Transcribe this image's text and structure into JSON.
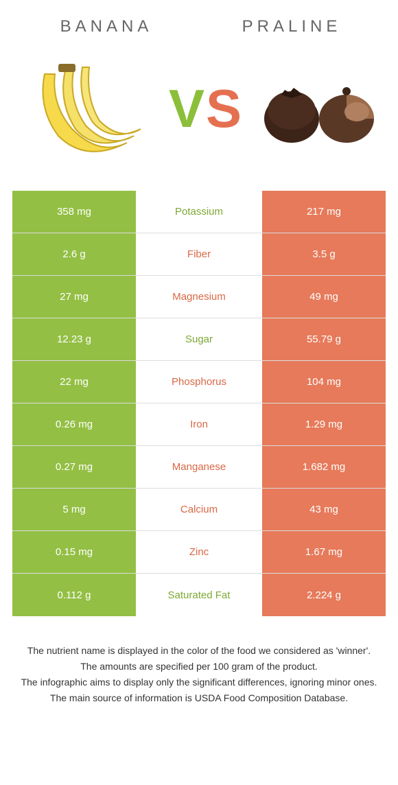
{
  "colors": {
    "green": "#93bf44",
    "orange": "#e67a5a",
    "green_text": "#7da834",
    "orange_text": "#d86845"
  },
  "left_food": "BANANA",
  "right_food": "PRALINE",
  "vs_v": "V",
  "vs_s": "S",
  "rows": [
    {
      "left": "358 mg",
      "label": "Potassium",
      "right": "217 mg",
      "winner": "left"
    },
    {
      "left": "2.6 g",
      "label": "Fiber",
      "right": "3.5 g",
      "winner": "right"
    },
    {
      "left": "27 mg",
      "label": "Magnesium",
      "right": "49 mg",
      "winner": "right"
    },
    {
      "left": "12.23 g",
      "label": "Sugar",
      "right": "55.79 g",
      "winner": "left"
    },
    {
      "left": "22 mg",
      "label": "Phosphorus",
      "right": "104 mg",
      "winner": "right"
    },
    {
      "left": "0.26 mg",
      "label": "Iron",
      "right": "1.29 mg",
      "winner": "right"
    },
    {
      "left": "0.27 mg",
      "label": "Manganese",
      "right": "1.682 mg",
      "winner": "right"
    },
    {
      "left": "5 mg",
      "label": "Calcium",
      "right": "43 mg",
      "winner": "right"
    },
    {
      "left": "0.15 mg",
      "label": "Zinc",
      "right": "1.67 mg",
      "winner": "right"
    },
    {
      "left": "0.112 g",
      "label": "Saturated Fat",
      "right": "2.224 g",
      "winner": "left"
    }
  ],
  "footer": [
    "The nutrient name is displayed in the color of the food we considered as 'winner'.",
    "The amounts are specified per 100 gram of the product.",
    "The infographic aims to display only the significant differences, ignoring minor ones.",
    "The main source of information is USDA Food Composition Database."
  ]
}
